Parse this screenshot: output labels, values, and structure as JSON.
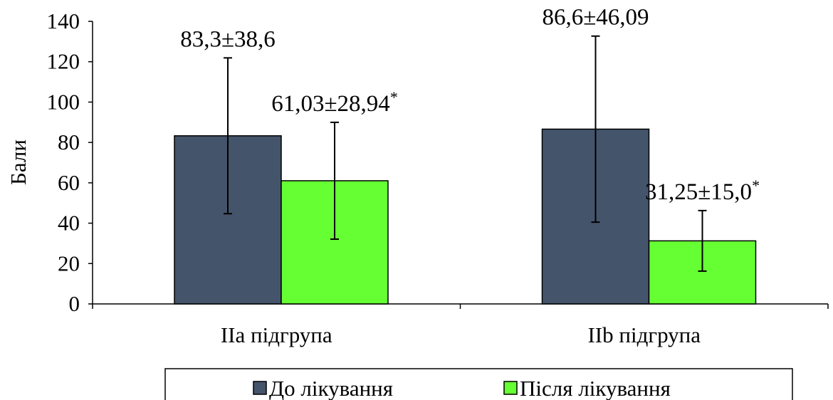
{
  "chart_data": {
    "type": "bar",
    "ylabel": "Бали",
    "ylim": [
      0,
      140
    ],
    "yticks": [
      0,
      20,
      40,
      60,
      80,
      100,
      120,
      140
    ],
    "categories": [
      "IIa підгрупа",
      "IIb підгрупа"
    ],
    "series": [
      {
        "name": "До лікування",
        "color": "#44546a",
        "values": [
          83.3,
          86.6
        ],
        "errors": [
          38.6,
          46.09
        ],
        "labels": [
          "83,3±38,6",
          "86,6±46,09"
        ],
        "label_marks": [
          "",
          ""
        ]
      },
      {
        "name": "Після лікування",
        "color": "#66ff33",
        "values": [
          61.03,
          31.25
        ],
        "errors": [
          28.94,
          15.0
        ],
        "labels": [
          "61,03±28,94",
          "31,25±15,0"
        ],
        "label_marks": [
          "*",
          "*"
        ]
      }
    ],
    "legend_position": "bottom",
    "grid": false
  }
}
